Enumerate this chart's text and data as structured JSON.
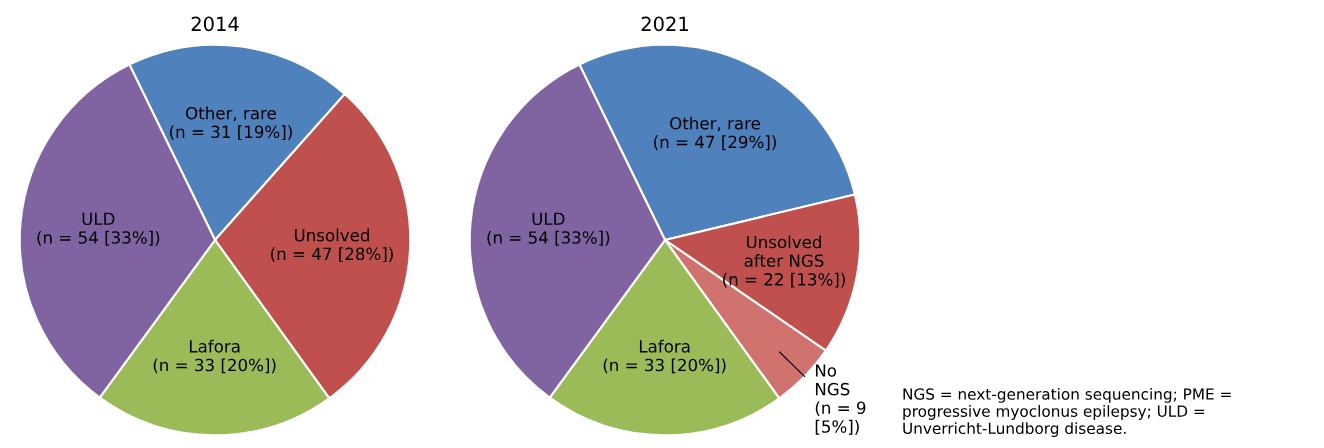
{
  "chart_data": [
    {
      "type": "pie",
      "title": "2014",
      "categories": [
        "Other, rare",
        "Unsolved",
        "Lafora",
        "ULD"
      ],
      "values": [
        31,
        47,
        33,
        54
      ],
      "value_labels": [
        "(n = 31 [19%])",
        "(n = 47 [28%])",
        "(n = 33 [20%])",
        "(n = 54 [33%])"
      ],
      "colors": [
        "#4f81bd",
        "#c0504d",
        "#9bbb59",
        "#8064a2"
      ]
    },
    {
      "type": "pie",
      "title": "2021",
      "categories": [
        "Other, rare",
        "Unsolved\nafter NGS",
        "No\nNGS",
        "Lafora",
        "ULD"
      ],
      "values": [
        47,
        22,
        9,
        33,
        54
      ],
      "value_labels": [
        "(n = 47 [29%])",
        "(n = 22 [13%])",
        "(n = 9\n[5%])",
        "(n = 33 [20%])",
        "(n = 54 [33%])"
      ],
      "colors": [
        "#4f81bd",
        "#c0504d",
        "#d0726e",
        "#9bbb59",
        "#8064a2"
      ],
      "annotations": [
        "NGS = next-generation sequencing; PME = progressive myoclonus epilepsy; ULD = Unverricht-Lundborg disease."
      ]
    }
  ]
}
